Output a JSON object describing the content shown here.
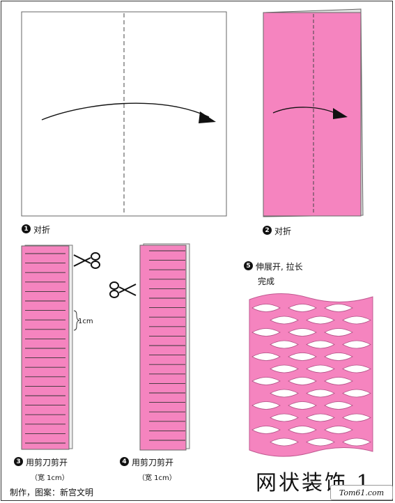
{
  "steps": [
    {
      "number": "1",
      "label": "对折"
    },
    {
      "number": "2",
      "label": "对折"
    },
    {
      "number": "3",
      "label": "用剪刀剪开",
      "note": "（宽 1cm）"
    },
    {
      "number": "4",
      "label": "用剪刀剪开",
      "note": "（宽 1cm）"
    },
    {
      "number": "5",
      "label": "伸展开, 拉长",
      "label_line2": "完成"
    }
  ],
  "measure_label": "1cm",
  "title": "网状装饰 1",
  "credit": "制作，图案：新宫文明",
  "watermark": "Tom61.com",
  "colors": {
    "paper_pink": "#f584bf",
    "outline": "#555555",
    "line": "#222222"
  }
}
